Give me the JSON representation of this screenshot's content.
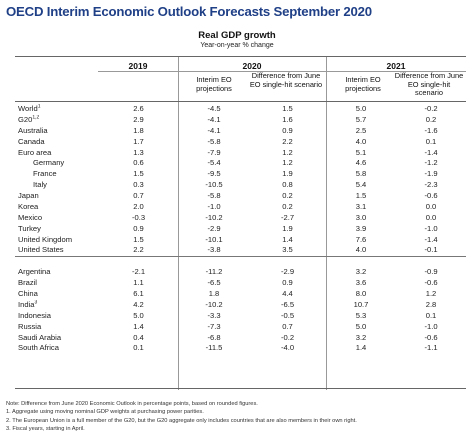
{
  "title": "OECD Interim Economic Outlook Forecasts September 2020",
  "subtitle": "Real GDP growth",
  "subnote": "Year-on-year % change",
  "years": {
    "y2019": "2019",
    "y2020": "2020",
    "y2021": "2021"
  },
  "columns": {
    "interim": "Interim EO projections",
    "difference": "Difference from June EO single-hit scenario"
  },
  "rows": [
    {
      "country": "World",
      "sup": "1",
      "v2019": "2.6",
      "p2020": "-4.5",
      "d2020": "1.5",
      "p2021": "5.0",
      "d2021": "-0.2"
    },
    {
      "country": "G20",
      "sup": "1,2",
      "v2019": "2.9",
      "p2020": "-4.1",
      "d2020": "1.6",
      "p2021": "5.7",
      "d2021": "0.2"
    },
    {
      "country": "Australia",
      "sup": "",
      "v2019": "1.8",
      "p2020": "-4.1",
      "d2020": "0.9",
      "p2021": "2.5",
      "d2021": "-1.6"
    },
    {
      "country": "Canada",
      "sup": "",
      "v2019": "1.7",
      "p2020": "-5.8",
      "d2020": "2.2",
      "p2021": "4.0",
      "d2021": "0.1"
    },
    {
      "country": "Euro area",
      "sup": "",
      "v2019": "1.3",
      "p2020": "-7.9",
      "d2020": "1.2",
      "p2021": "5.1",
      "d2021": "-1.4"
    },
    {
      "country": "Germany",
      "sup": "",
      "v2019": "0.6",
      "p2020": "-5.4",
      "d2020": "1.2",
      "p2021": "4.6",
      "d2021": "-1.2"
    },
    {
      "country": "France",
      "sup": "",
      "v2019": "1.5",
      "p2020": "-9.5",
      "d2020": "1.9",
      "p2021": "5.8",
      "d2021": "-1.9"
    },
    {
      "country": "Italy",
      "sup": "",
      "v2019": "0.3",
      "p2020": "-10.5",
      "d2020": "0.8",
      "p2021": "5.4",
      "d2021": "-2.3"
    },
    {
      "country": "Japan",
      "sup": "",
      "v2019": "0.7",
      "p2020": "-5.8",
      "d2020": "0.2",
      "p2021": "1.5",
      "d2021": "-0.6"
    },
    {
      "country": "Korea",
      "sup": "",
      "v2019": "2.0",
      "p2020": "-1.0",
      "d2020": "0.2",
      "p2021": "3.1",
      "d2021": "0.0"
    },
    {
      "country": "Mexico",
      "sup": "",
      "v2019": "-0.3",
      "p2020": "-10.2",
      "d2020": "-2.7",
      "p2021": "3.0",
      "d2021": "0.0"
    },
    {
      "country": "Turkey",
      "sup": "",
      "v2019": "0.9",
      "p2020": "-2.9",
      "d2020": "1.9",
      "p2021": "3.9",
      "d2021": "-1.0"
    },
    {
      "country": "United Kingdom",
      "sup": "",
      "v2019": "1.5",
      "p2020": "-10.1",
      "d2020": "1.4",
      "p2021": "7.6",
      "d2021": "-1.4"
    },
    {
      "country": "United States",
      "sup": "",
      "v2019": "2.2",
      "p2020": "-3.8",
      "d2020": "3.5",
      "p2021": "4.0",
      "d2021": "-0.1"
    },
    {
      "country": "Argentina",
      "sup": "",
      "v2019": "-2.1",
      "p2020": "-11.2",
      "d2020": "-2.9",
      "p2021": "3.2",
      "d2021": "-0.9"
    },
    {
      "country": "Brazil",
      "sup": "",
      "v2019": "1.1",
      "p2020": "-6.5",
      "d2020": "0.9",
      "p2021": "3.6",
      "d2021": "-0.6"
    },
    {
      "country": "China",
      "sup": "",
      "v2019": "6.1",
      "p2020": "1.8",
      "d2020": "4.4",
      "p2021": "8.0",
      "d2021": "1.2"
    },
    {
      "country": "India",
      "sup": "3",
      "v2019": "4.2",
      "p2020": "-10.2",
      "d2020": "-6.5",
      "p2021": "10.7",
      "d2021": "2.8"
    },
    {
      "country": "Indonesia",
      "sup": "",
      "v2019": "5.0",
      "p2020": "-3.3",
      "d2020": "-0.5",
      "p2021": "5.3",
      "d2021": "0.1"
    },
    {
      "country": "Russia",
      "sup": "",
      "v2019": "1.4",
      "p2020": "-7.3",
      "d2020": "0.7",
      "p2021": "5.0",
      "d2021": "-1.0"
    },
    {
      "country": "Saudi Arabia",
      "sup": "",
      "v2019": "0.4",
      "p2020": "-6.8",
      "d2020": "-0.2",
      "p2021": "3.2",
      "d2021": "-0.6"
    },
    {
      "country": "South Africa",
      "sup": "",
      "v2019": "0.1",
      "p2020": "-11.5",
      "d2020": "-4.0",
      "p2021": "1.4",
      "d2021": "-1.1"
    }
  ],
  "notes": [
    "Note: Difference from June 2020 Economic Outlook in percentage points, based on rounded figures.",
    "1. Aggregate using moving nominal GDP weights at purchasing power parities.",
    "2. The European Union is a full member of the G20, but the G20 aggregate only includes countries that are also members in their own right.",
    "3. Fiscal years, starting in April."
  ]
}
